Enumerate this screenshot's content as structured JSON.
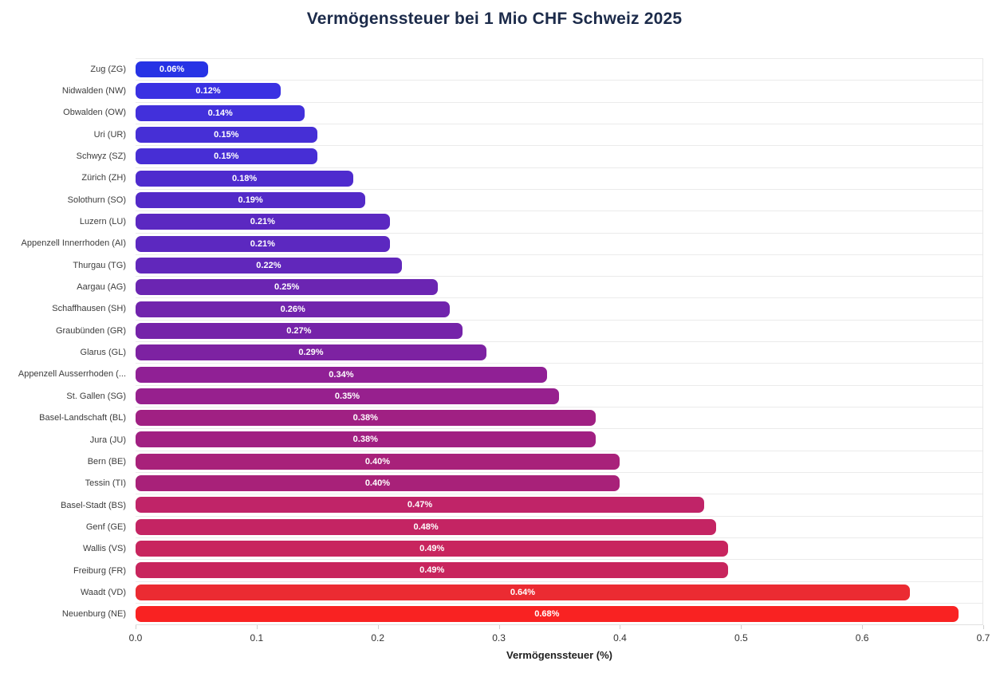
{
  "chart_data": {
    "type": "bar",
    "orientation": "horizontal",
    "title": "Vermögenssteuer bei 1 Mio CHF Schweiz 2025",
    "xlabel": "Vermögenssteuer (%)",
    "ylabel": "",
    "xlim": [
      0.0,
      0.7
    ],
    "x_tick_labels": [
      "0.0",
      "0.1",
      "0.2",
      "0.3",
      "0.4",
      "0.5",
      "0.6",
      "0.7"
    ],
    "x_tick_values": [
      0.0,
      0.1,
      0.2,
      0.3,
      0.4,
      0.5,
      0.6,
      0.7
    ],
    "grid": "horizontal row separator lines, light gray",
    "legend": "none",
    "categories": [
      "Zug (ZG)",
      "Nidwalden (NW)",
      "Obwalden (OW)",
      "Uri (UR)",
      "Schwyz (SZ)",
      "Zürich (ZH)",
      "Solothurn (SO)",
      "Luzern (LU)",
      "Appenzell Innerrhoden (AI)",
      "Thurgau (TG)",
      "Aargau (AG)",
      "Schaffhausen (SH)",
      "Graubünden (GR)",
      "Glarus (GL)",
      "Appenzell Ausserrhoden (...",
      "St. Gallen (SG)",
      "Basel-Landschaft (BL)",
      "Jura (JU)",
      "Bern (BE)",
      "Tessin (TI)",
      "Basel-Stadt (BS)",
      "Genf (GE)",
      "Wallis (VS)",
      "Freiburg (FR)",
      "Waadt (VD)",
      "Neuenburg (NE)"
    ],
    "values": [
      0.06,
      0.12,
      0.14,
      0.15,
      0.15,
      0.18,
      0.19,
      0.21,
      0.21,
      0.22,
      0.25,
      0.26,
      0.27,
      0.29,
      0.34,
      0.35,
      0.38,
      0.38,
      0.4,
      0.4,
      0.47,
      0.48,
      0.49,
      0.49,
      0.64,
      0.68
    ],
    "value_labels": [
      "0.06%",
      "0.12%",
      "0.14%",
      "0.15%",
      "0.15%",
      "0.18%",
      "0.19%",
      "0.21%",
      "0.21%",
      "0.22%",
      "0.25%",
      "0.26%",
      "0.27%",
      "0.29%",
      "0.34%",
      "0.35%",
      "0.38%",
      "0.38%",
      "0.40%",
      "0.40%",
      "0.47%",
      "0.48%",
      "0.49%",
      "0.49%",
      "0.64%",
      "0.68%"
    ],
    "bar_colors": [
      "#2733e5",
      "#3a31e2",
      "#4230db",
      "#462fd6",
      "#472ed5",
      "#4e2bce",
      "#532ac8",
      "#5b28c1",
      "#5c28c0",
      "#6127bb",
      "#6b25b2",
      "#7124ad",
      "#7523a9",
      "#7d22a2",
      "#902095",
      "#97208e",
      "#a02083",
      "#a12082",
      "#a8217a",
      "#a82179",
      "#c02468",
      "#c42463",
      "#c8255e",
      "#c8255d",
      "#eb2b32",
      "#f92222"
    ],
    "colors": {
      "title": "#1c2b4a",
      "category_label": "#3c3c3c",
      "tick_label": "#333333",
      "axis_title": "#1f1f1f",
      "gridline": "#ebebeb",
      "bar_value_text": "#ffffff",
      "background": "#ffffff"
    }
  }
}
